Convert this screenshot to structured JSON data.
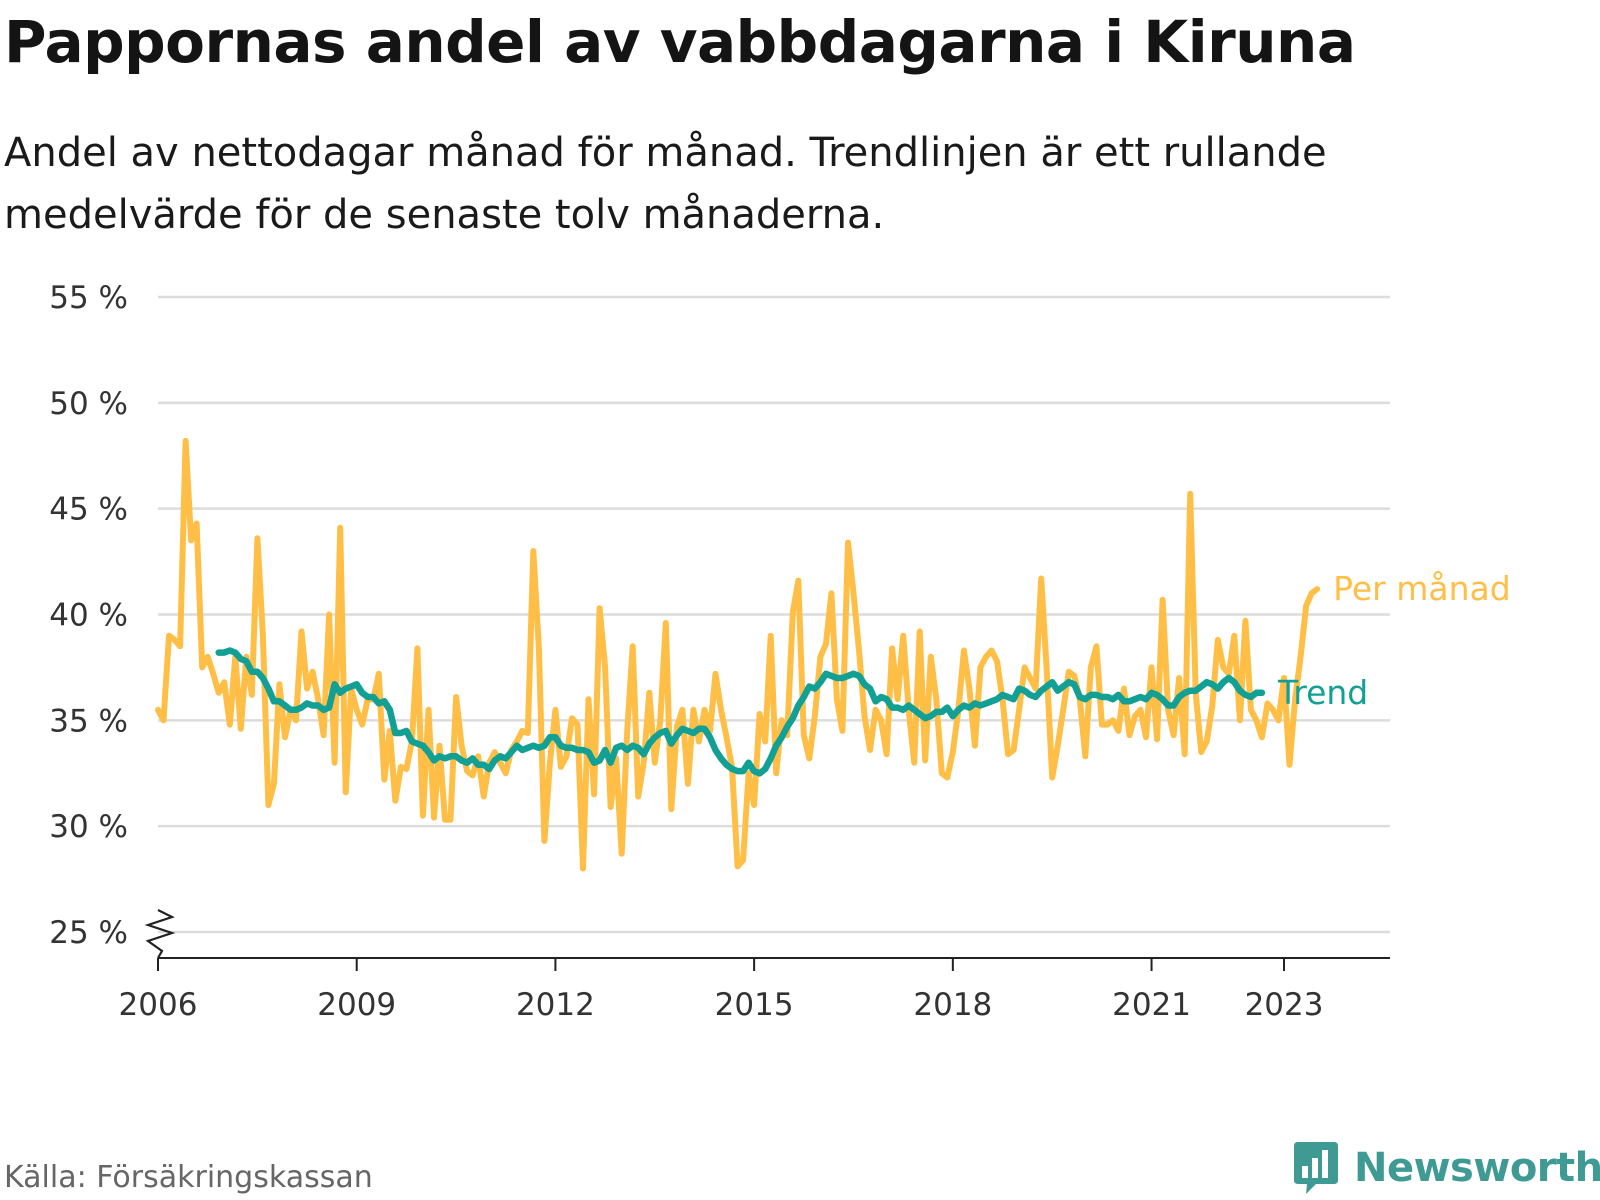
{
  "title": "Pappornas andel av vabbdagarna i Kiruna",
  "subtitle": "Andel av nettodagar månad för månad. Trendlinjen är ett rullande medelvärde för de senaste tolv månaderna.",
  "source": "Källa: Försäkringskassan",
  "brand": {
    "name": "Newsworthy",
    "icon": "newsworthy-logo-icon",
    "color": "#3e9a93"
  },
  "chart_data": {
    "type": "line",
    "xlim": [
      2006,
      2024.6
    ],
    "ylim": [
      25,
      55
    ],
    "y_ticks": [
      25,
      30,
      35,
      40,
      45,
      50,
      55
    ],
    "y_tick_labels": [
      "25 %",
      "30 %",
      "35 %",
      "40 %",
      "45 %",
      "50 %",
      "55 %"
    ],
    "x_ticks": [
      2006,
      2009,
      2012,
      2015,
      2018,
      2021,
      2023
    ],
    "x_tick_labels": [
      "2006",
      "2009",
      "2012",
      "2015",
      "2018",
      "2021",
      "2023"
    ],
    "grid": true,
    "y_axis_break": true,
    "series": [
      {
        "name": "Per månad",
        "color": "#ffbf47",
        "start": 2006.0,
        "step": 0.0833333,
        "values": [
          35.5,
          35.0,
          39.0,
          38.8,
          38.5,
          48.2,
          43.5,
          44.3,
          37.5,
          38.0,
          37.2,
          36.3,
          36.8,
          34.8,
          38.0,
          34.6,
          38.0,
          36.2,
          43.6,
          39.0,
          31.0,
          32.0,
          36.7,
          34.2,
          35.5,
          35.0,
          39.2,
          36.5,
          37.3,
          36.0,
          34.3,
          40.0,
          33.0,
          44.1,
          31.6,
          36.5,
          35.5,
          34.8,
          36.0,
          36.0,
          37.2,
          32.2,
          34.5,
          31.2,
          32.8,
          32.7,
          34.0,
          38.4,
          30.5,
          35.5,
          30.4,
          33.8,
          30.3,
          30.3,
          36.1,
          33.8,
          32.6,
          32.4,
          33.3,
          31.4,
          33.0,
          33.5,
          33.0,
          32.5,
          33.6,
          34.0,
          34.5,
          34.4,
          43.0,
          38.4,
          29.3,
          33.0,
          35.5,
          32.8,
          33.3,
          35.1,
          34.8,
          28.0,
          36.0,
          31.5,
          40.3,
          37.5,
          30.9,
          33.2,
          28.7,
          34.5,
          38.5,
          31.4,
          33.0,
          36.3,
          33.0,
          35.0,
          39.6,
          30.8,
          34.7,
          35.5,
          32.0,
          35.5,
          34.0,
          35.5,
          34.5,
          37.2,
          35.5,
          34.2,
          32.8,
          28.1,
          28.4,
          32.5,
          31.0,
          35.3,
          34.0,
          39.0,
          32.5,
          35.0,
          34.3,
          40.1,
          41.6,
          34.3,
          33.2,
          35.2,
          38.0,
          38.6,
          41.0,
          36.0,
          34.5,
          43.4,
          41.0,
          38.3,
          35.2,
          33.6,
          35.5,
          35.0,
          33.4,
          38.4,
          36.0,
          39.0,
          35.5,
          33.0,
          39.2,
          33.1,
          38.0,
          36.0,
          32.5,
          32.3,
          33.5,
          35.5,
          38.3,
          36.5,
          33.8,
          37.5,
          38.0,
          38.3,
          37.8,
          36.0,
          33.4,
          33.6,
          35.5,
          37.5,
          37.0,
          36.5,
          41.7,
          37.4,
          32.3,
          33.8,
          35.5,
          37.3,
          37.1,
          36.0,
          33.3,
          37.5,
          38.5,
          34.8,
          34.8,
          35.0,
          34.5,
          36.5,
          34.3,
          35.2,
          35.5,
          34.2,
          37.5,
          34.1,
          40.7,
          35.5,
          34.3,
          37.0,
          33.4,
          45.7,
          36.3,
          33.5,
          34.0,
          35.7,
          38.8,
          37.5,
          37.2,
          39.0,
          35.0,
          39.7,
          35.5,
          35.0,
          34.2,
          35.8,
          35.5,
          35.0,
          37.0,
          32.9,
          36.0,
          38.0,
          40.4,
          41.0,
          41.2
        ]
      },
      {
        "name": "Trend",
        "color": "#129f94",
        "start": 2006.9167,
        "step": 0.0833333,
        "values": [
          38.2,
          38.2,
          38.3,
          38.2,
          37.9,
          37.8,
          37.3,
          37.3,
          37.0,
          36.5,
          35.9,
          35.9,
          35.7,
          35.5,
          35.5,
          35.6,
          35.8,
          35.7,
          35.7,
          35.5,
          35.6,
          36.7,
          36.3,
          36.5,
          36.6,
          36.7,
          36.3,
          36.1,
          36.1,
          35.8,
          35.9,
          35.5,
          34.4,
          34.4,
          34.5,
          34.0,
          33.9,
          33.8,
          33.5,
          33.1,
          33.3,
          33.2,
          33.3,
          33.3,
          33.1,
          33.0,
          33.2,
          32.9,
          32.9,
          32.7,
          33.1,
          33.3,
          33.2,
          33.5,
          33.8,
          33.6,
          33.7,
          33.8,
          33.7,
          33.8,
          34.2,
          34.2,
          33.8,
          33.7,
          33.7,
          33.6,
          33.6,
          33.5,
          33.0,
          33.1,
          33.6,
          33.0,
          33.7,
          33.8,
          33.6,
          33.8,
          33.7,
          33.4,
          33.9,
          34.2,
          34.4,
          34.5,
          33.9,
          34.3,
          34.6,
          34.5,
          34.4,
          34.6,
          34.6,
          34.2,
          33.6,
          33.2,
          32.9,
          32.7,
          32.6,
          32.6,
          33.0,
          32.6,
          32.5,
          32.7,
          33.2,
          33.8,
          34.2,
          34.7,
          35.1,
          35.7,
          36.1,
          36.6,
          36.5,
          36.8,
          37.2,
          37.1,
          37.0,
          37.0,
          37.1,
          37.2,
          37.1,
          36.7,
          36.5,
          35.9,
          36.1,
          36.0,
          35.6,
          35.6,
          35.5,
          35.7,
          35.5,
          35.3,
          35.1,
          35.2,
          35.4,
          35.4,
          35.6,
          35.2,
          35.5,
          35.7,
          35.6,
          35.8,
          35.7,
          35.8,
          35.9,
          36.0,
          36.2,
          36.1,
          36.0,
          36.5,
          36.4,
          36.2,
          36.1,
          36.4,
          36.6,
          36.8,
          36.4,
          36.6,
          36.8,
          36.7,
          36.1,
          36.0,
          36.2,
          36.2,
          36.1,
          36.1,
          36.0,
          36.2,
          35.9,
          35.9,
          36.0,
          36.1,
          36.0,
          36.3,
          36.2,
          36.0,
          35.7,
          35.7,
          36.1,
          36.3,
          36.4,
          36.4,
          36.6,
          36.8,
          36.7,
          36.5,
          36.8,
          37.0,
          36.8,
          36.4,
          36.2,
          36.1,
          36.3,
          36.3
        ]
      }
    ]
  }
}
